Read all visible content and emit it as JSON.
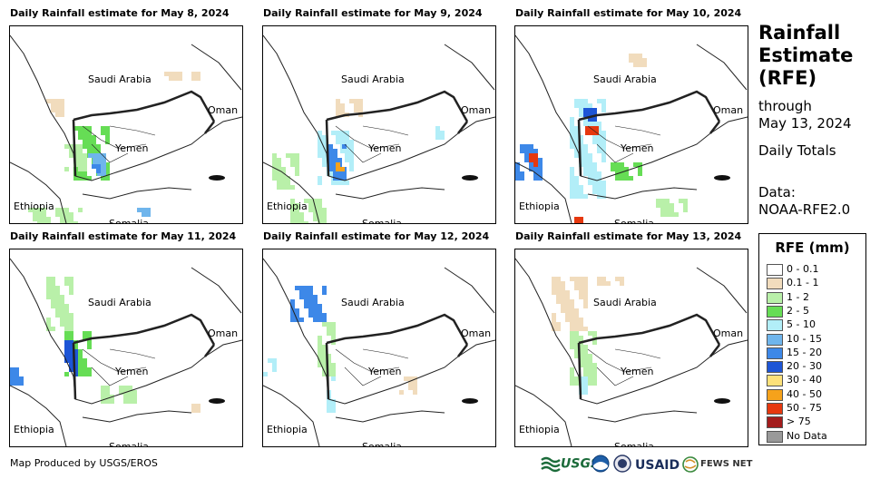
{
  "panels": [
    {
      "title": "Daily Rainfall estimate for May 8, 2024"
    },
    {
      "title": "Daily Rainfall estimate for May 9, 2024"
    },
    {
      "title": "Daily Rainfall estimate for May 10, 2024"
    },
    {
      "title": "Daily Rainfall estimate for May 11, 2024"
    },
    {
      "title": "Daily Rainfall estimate for May 12, 2024"
    },
    {
      "title": "Daily Rainfall estimate for May 13, 2024"
    }
  ],
  "map_labels": {
    "saudi": "Saudi Arabia",
    "oman": "Oman",
    "yemen": "Yemen",
    "ethiopia": "Ethiopia",
    "somalia": "Somalia"
  },
  "side": {
    "title_1": "Rainfall",
    "title_2": "Estimate",
    "title_3": "(RFE)",
    "through": "through",
    "date": "May 13, 2024",
    "daily": "Daily Totals",
    "data_1": "Data:",
    "data_2": "NOAA-RFE2.0"
  },
  "legend": {
    "title": "RFE (mm)",
    "items": [
      {
        "label": "0 - 0.1",
        "color": "#ffffff"
      },
      {
        "label": "0.1 - 1",
        "color": "#f1dcbd"
      },
      {
        "label": "1 - 2",
        "color": "#b9f0a9"
      },
      {
        "label": "2 - 5",
        "color": "#66dd55"
      },
      {
        "label": "5 - 10",
        "color": "#b2eef8"
      },
      {
        "label": "10 - 15",
        "color": "#6fb5ec"
      },
      {
        "label": "15 - 20",
        "color": "#3d88e8"
      },
      {
        "label": "20 - 30",
        "color": "#1d55d6"
      },
      {
        "label": "30 - 40",
        "color": "#fde17a"
      },
      {
        "label": "40 - 50",
        "color": "#f6a21b"
      },
      {
        "label": "50 - 75",
        "color": "#e6380f"
      },
      {
        "label": "> 75",
        "color": "#a31c1c"
      },
      {
        "label": "No Data",
        "color": "#999999"
      }
    ]
  },
  "footer": "Map Produced by USGS/EROS",
  "logos": {
    "usgs": "USGS",
    "usaid": "USAID",
    "fews": "FEWS NET"
  }
}
